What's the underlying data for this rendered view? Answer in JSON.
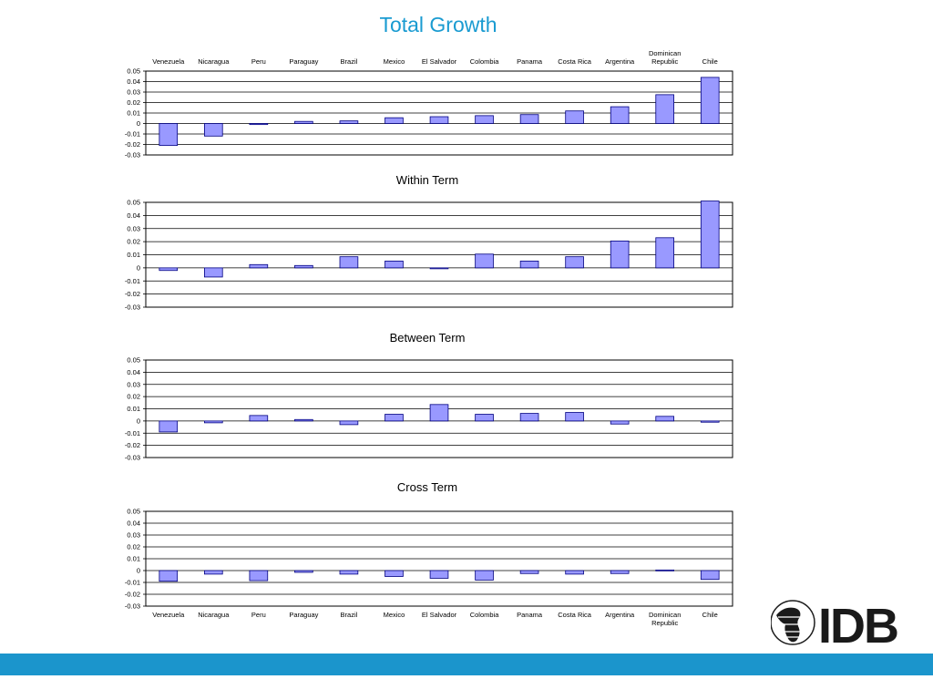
{
  "slide": {
    "title": "Total Growth",
    "logo_text": "IDB"
  },
  "colors": {
    "title": "#1a9bd1",
    "bar_fill": "#9999ff",
    "bar_stroke": "#000080",
    "footer_bar": "#1b95cc",
    "logo": "#1a1a1a"
  },
  "chart_data": [
    {
      "type": "bar",
      "title": "",
      "categories": [
        "Venezuela",
        "Nicaragua",
        "Peru",
        "Paraguay",
        "Brazil",
        "Mexico",
        "El Salvador",
        "Colombia",
        "Panama",
        "Costa Rica",
        "Argentina",
        "Dominican Republic",
        "Chile"
      ],
      "category_axis_position": "top",
      "values": [
        -0.021,
        -0.012,
        -0.001,
        0.002,
        0.0025,
        0.0055,
        0.0065,
        0.0075,
        0.0085,
        0.012,
        0.016,
        0.0275,
        0.044
      ],
      "ylim": [
        -0.03,
        0.05
      ],
      "yticks": [
        "0.05",
        "0.04",
        "0.03",
        "0.02",
        "0.01",
        "0",
        "-0.01",
        "-0.02",
        "-0.03"
      ],
      "grid": true
    },
    {
      "type": "bar",
      "title": "Within Term",
      "categories": [
        "Venezuela",
        "Nicaragua",
        "Peru",
        "Paraguay",
        "Brazil",
        "Mexico",
        "El Salvador",
        "Colombia",
        "Panama",
        "Costa Rica",
        "Argentina",
        "Dominican Republic",
        "Chile"
      ],
      "category_axis_position": "none",
      "values": [
        -0.002,
        -0.007,
        0.0025,
        0.0018,
        0.0085,
        0.0052,
        -0.0005,
        0.0105,
        0.0052,
        0.0085,
        0.0205,
        0.023,
        0.051
      ],
      "ylim": [
        -0.03,
        0.05
      ],
      "yticks": [
        "0.05",
        "0.04",
        "0.03",
        "0.02",
        "0.01",
        "0",
        "-0.01",
        "-0.02",
        "-0.03"
      ],
      "grid": true
    },
    {
      "type": "bar",
      "title": "Between Term",
      "categories": [
        "Venezuela",
        "Nicaragua",
        "Peru",
        "Paraguay",
        "Brazil",
        "Mexico",
        "El Salvador",
        "Colombia",
        "Panama",
        "Costa Rica",
        "Argentina",
        "Dominican Republic",
        "Chile"
      ],
      "category_axis_position": "none",
      "values": [
        -0.009,
        -0.0015,
        0.0045,
        0.0012,
        -0.003,
        0.0055,
        0.0135,
        0.0055,
        0.0062,
        0.007,
        -0.0025,
        0.0038,
        -0.001
      ],
      "ylim": [
        -0.03,
        0.05
      ],
      "yticks": [
        "0.05",
        "0.04",
        "0.03",
        "0.02",
        "0.01",
        "0",
        "-0.01",
        "-0.02",
        "-0.03"
      ],
      "grid": true
    },
    {
      "type": "bar",
      "title": "Cross Term",
      "categories": [
        "Venezuela",
        "Nicaragua",
        "Peru",
        "Paraguay",
        "Brazil",
        "Mexico",
        "El Salvador",
        "Colombia",
        "Panama",
        "Costa Rica",
        "Argentina",
        "Dominican Republic",
        "Chile"
      ],
      "category_axis_position": "bottom",
      "values": [
        -0.009,
        -0.003,
        -0.0085,
        -0.0015,
        -0.003,
        -0.005,
        -0.0065,
        -0.008,
        -0.0025,
        -0.003,
        -0.0025,
        0.0005,
        -0.0075
      ],
      "ylim": [
        -0.03,
        0.05
      ],
      "yticks": [
        "0.05",
        "0.04",
        "0.03",
        "0.02",
        "0.01",
        "0",
        "-0.01",
        "-0.02",
        "-0.03"
      ],
      "grid": true
    }
  ]
}
